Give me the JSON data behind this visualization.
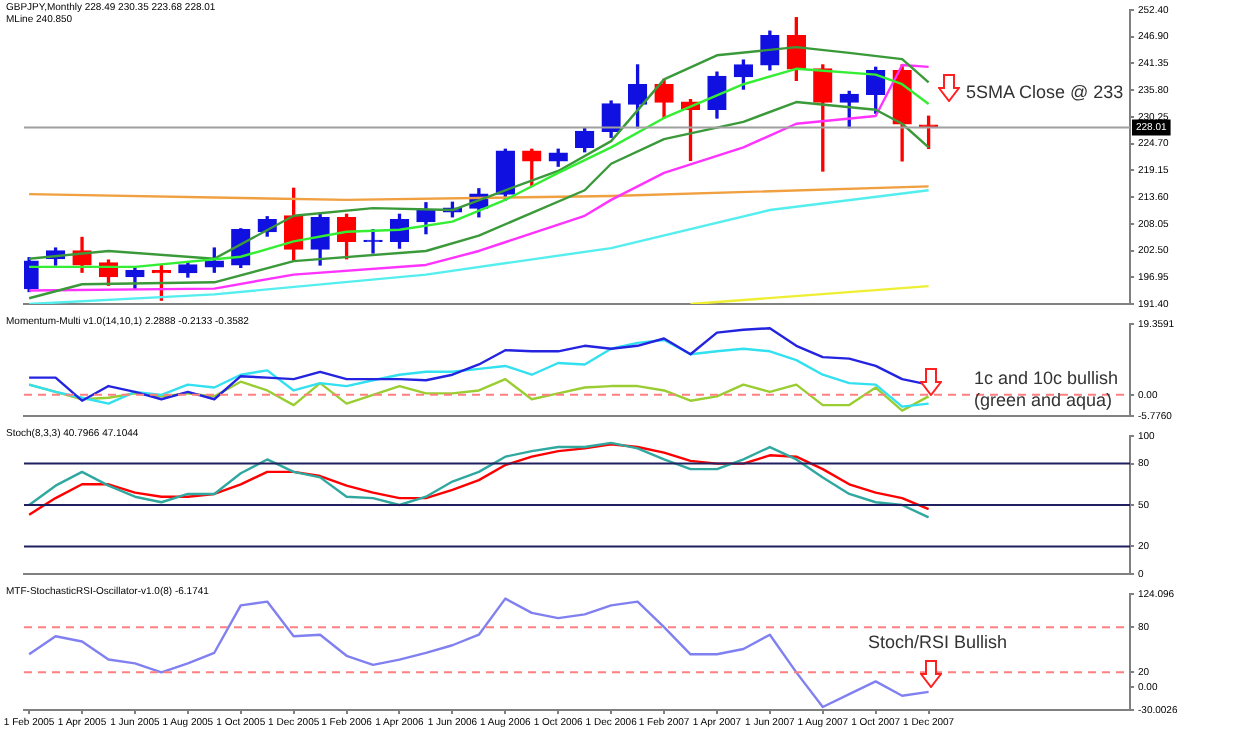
{
  "chart_data": [
    {
      "type": "candlestick",
      "title": "GBPJPY,Monthly  228.49 230.35 223.68 228.01",
      "subtitle": "MLine 240.850",
      "tick_labels": "y",
      "x": [
        "2005-02",
        "2005-03",
        "2005-04",
        "2005-05",
        "2005-06",
        "2005-07",
        "2005-08",
        "2005-09",
        "2005-10",
        "2005-11",
        "2005-12",
        "2006-01",
        "2006-02",
        "2006-03",
        "2006-04",
        "2006-05",
        "2006-06",
        "2006-07",
        "2006-08",
        "2006-09",
        "2006-10",
        "2006-11",
        "2006-12",
        "2007-01",
        "2007-02",
        "2007-03",
        "2007-04",
        "2007-05",
        "2007-06",
        "2007-07",
        "2007-08",
        "2007-09",
        "2007-10",
        "2007-11",
        "2007-12"
      ],
      "ohlc": [
        [
          194.6,
          201,
          194,
          200.3
        ],
        [
          200.8,
          203,
          199.5,
          202.4
        ],
        [
          202.4,
          205.2,
          198,
          199.5
        ],
        [
          199.9,
          200.5,
          195.3,
          197.1
        ],
        [
          197.1,
          199,
          194.5,
          198.3
        ],
        [
          198.3,
          199.5,
          192.2,
          197.9
        ],
        [
          197.9,
          200,
          197,
          199.5
        ],
        [
          199.1,
          203,
          198,
          200.3
        ],
        [
          199.5,
          207,
          199,
          206.8
        ],
        [
          206.4,
          209.5,
          205.5,
          208.9
        ],
        [
          209.7,
          215.4,
          200.5,
          202.8
        ],
        [
          202.8,
          210,
          199.5,
          209.3
        ],
        [
          209.3,
          210,
          200.8,
          204.4
        ],
        [
          204.4,
          206.8,
          202,
          204.6
        ],
        [
          204.4,
          210,
          203,
          208.9
        ],
        [
          208.5,
          212.4,
          206,
          210.9
        ],
        [
          210.5,
          212.5,
          209.5,
          211.3
        ],
        [
          211.3,
          215.3,
          209.5,
          214.2
        ],
        [
          214.2,
          223.5,
          213,
          223.1
        ],
        [
          223.1,
          223.5,
          216,
          221.1
        ],
        [
          221.1,
          223.5,
          220,
          222.7
        ],
        [
          223.9,
          228,
          223,
          227.2
        ],
        [
          227.2,
          233.5,
          226,
          232.9
        ],
        [
          232.9,
          241,
          228,
          236.9
        ],
        [
          236.9,
          238,
          230,
          233.3
        ],
        [
          233.3,
          233.8,
          221.2,
          231.8
        ],
        [
          231.8,
          239.5,
          230,
          238.6
        ],
        [
          238.6,
          242,
          236,
          241
        ],
        [
          241,
          248,
          240,
          247.1
        ],
        [
          247.1,
          250.8,
          237.8,
          240.2
        ],
        [
          240.2,
          241,
          219,
          233.3
        ],
        [
          233.3,
          235.5,
          228,
          234.9
        ],
        [
          234.9,
          240.5,
          231,
          239.8
        ],
        [
          239.8,
          241,
          221.1,
          228.8
        ],
        [
          228.49,
          230.35,
          223.68,
          228.01
        ]
      ],
      "colors": [
        "#1010e0",
        "#1010e0",
        "#ff0000",
        "#ff0000",
        "#1010e0",
        "#ff0000",
        "#1010e0",
        "#1010e0",
        "#1010e0",
        "#1010e0",
        "#ff0000",
        "#1010e0",
        "#ff0000",
        "#1010e0",
        "#1010e0",
        "#1010e0",
        "#1010e0",
        "#1010e0",
        "#1010e0",
        "#ff0000",
        "#1010e0",
        "#1010e0",
        "#1010e0",
        "#1010e0",
        "#ff0000",
        "#ff0000",
        "#1010e0",
        "#1010e0",
        "#1010e0",
        "#ff0000",
        "#ff0000",
        "#1010e0",
        "#1010e0",
        "#ff0000",
        "#ff0000"
      ],
      "series": [
        {
          "type": "line",
          "color": "#33ee33",
          "x": [
            "2005-02",
            "2005-06",
            "2005-10",
            "2005-12",
            "2006-02",
            "2006-04",
            "2006-06",
            "2006-08",
            "2006-10",
            "2006-12",
            "2007-02",
            "2007-05",
            "2007-07",
            "2007-10",
            "2007-11",
            "2007-12"
          ],
          "values": [
            199.1,
            199.1,
            201.2,
            204.4,
            206.4,
            206.8,
            208.5,
            213,
            218.6,
            223.9,
            230,
            237,
            240.2,
            239,
            237,
            232.9
          ]
        },
        {
          "type": "line",
          "color": "#3a9a3a",
          "x": [
            "2005-02",
            "2005-05",
            "2005-09",
            "2005-12",
            "2006-03",
            "2006-06",
            "2006-08",
            "2006-10",
            "2006-12",
            "2007-02",
            "2007-04",
            "2007-07",
            "2007-09",
            "2007-11",
            "2007-12"
          ],
          "values": [
            200.8,
            202.4,
            200.8,
            209.7,
            211.3,
            210.9,
            215,
            219,
            225.2,
            238,
            243,
            244.7,
            243.5,
            242.2,
            237.4
          ]
        },
        {
          "type": "line",
          "color": "#3a9a3a",
          "x": [
            "2005-02",
            "2005-04",
            "2005-09",
            "2005-12",
            "2006-05",
            "2006-07",
            "2006-11",
            "2006-12",
            "2007-02",
            "2007-05",
            "2007-07",
            "2007-10",
            "2007-11",
            "2007-12"
          ],
          "values": [
            192.6,
            195.5,
            195.9,
            200.3,
            202.4,
            205.6,
            215,
            220.5,
            225.6,
            229.2,
            233.3,
            231.7,
            228.8,
            223.9
          ]
        },
        {
          "type": "line",
          "color": "#ff33ff",
          "x": [
            "2005-02",
            "2005-09",
            "2005-12",
            "2006-05",
            "2006-07",
            "2006-11",
            "2006-12",
            "2007-02",
            "2007-05",
            "2007-07",
            "2007-10",
            "2007-11",
            "2007-12"
          ],
          "values": [
            194.2,
            194.6,
            197.5,
            199.5,
            202.4,
            209.7,
            213,
            218.6,
            223.9,
            228.8,
            230.4,
            241,
            240.6
          ]
        },
        {
          "type": "line",
          "color": "#f0a040",
          "x": [
            "2005-02",
            "2006-02",
            "2006-12",
            "2007-12"
          ],
          "values": [
            214.2,
            213,
            213.8,
            215.8
          ]
        },
        {
          "type": "line",
          "color": "#55eeee",
          "x": [
            "2005-02",
            "2005-09",
            "2006-05",
            "2006-12",
            "2007-06",
            "2007-12"
          ],
          "values": [
            191.4,
            193.4,
            197.5,
            203,
            210.9,
            215
          ]
        },
        {
          "type": "line",
          "color": "#eeee33",
          "x": [
            "2007-03",
            "2007-12"
          ],
          "values": [
            191.4,
            195.1
          ]
        }
      ],
      "xlim": [
        "2005-01-26",
        "2008-07-20"
      ],
      "ylim": [
        191.4,
        252.4
      ],
      "yticks": [
        {
          "value": 191.4,
          "label": "191.40"
        },
        196.95,
        {
          "value": 202.5,
          "label": "202.50"
        },
        208.05,
        {
          "value": 213.6,
          "label": "213.60"
        },
        219.15,
        {
          "value": 224.7,
          "label": "224.70"
        },
        230.25,
        {
          "value": 235.8,
          "label": "235.80"
        },
        241.35,
        {
          "value": 246.9,
          "label": "246.90"
        },
        {
          "value": 252.4,
          "label": "252.40"
        }
      ],
      "ref_lines": [
        {
          "axis": "y",
          "value": 228.01,
          "label": "228.01",
          "color": "#a0a0a0"
        }
      ],
      "annotations": [
        "5SMA Close @ 233"
      ]
    },
    {
      "type": "line",
      "title": "Momentum-Multi v1.0(14,10,1) 2.2888 -0.2133 -0.3582",
      "tick_labels": "y",
      "x": [
        "2005-02",
        "2005-03",
        "2005-04",
        "2005-05",
        "2005-06",
        "2005-07",
        "2005-08",
        "2005-09",
        "2005-10",
        "2005-11",
        "2005-12",
        "2006-01",
        "2006-02",
        "2006-03",
        "2006-04",
        "2006-05",
        "2006-06",
        "2006-07",
        "2006-08",
        "2006-09",
        "2006-10",
        "2006-11",
        "2006-12",
        "2007-01",
        "2007-02",
        "2007-03",
        "2007-04",
        "2007-05",
        "2007-06",
        "2007-07",
        "2007-08",
        "2007-09",
        "2007-10",
        "2007-11",
        "2007-12"
      ],
      "series": [
        {
          "color": "#2323e0",
          "values": [
            4.7,
            4.7,
            -1.6,
            2.4,
            0.8,
            -1.2,
            0.8,
            -1.2,
            5.1,
            4.7,
            4.3,
            6.3,
            4.3,
            4.3,
            4.3,
            4,
            5.5,
            8.3,
            12.2,
            11.9,
            11.9,
            13.4,
            12.6,
            13.4,
            15.4,
            11.1,
            17,
            17.8,
            18.2,
            13.4,
            10.3,
            9.9,
            7.9,
            4.3,
            2.8
          ]
        },
        {
          "color": "#33e0f0",
          "values": [
            2.8,
            0.8,
            -0.8,
            -2.4,
            0.8,
            0,
            2.8,
            2,
            5.5,
            6.7,
            1.2,
            3.2,
            2.4,
            4,
            5.5,
            6.3,
            6.3,
            7.1,
            7.9,
            5.5,
            8.7,
            8.3,
            12.6,
            14.2,
            15,
            11.1,
            11.9,
            12.6,
            11.9,
            9.5,
            5.5,
            3.2,
            2.8,
            -3.2,
            -2.4
          ]
        },
        {
          "color": "#9acd32",
          "values": [
            2.8,
            0.8,
            -1.2,
            -0.8,
            0.4,
            -0.4,
            0.4,
            -0.4,
            3.6,
            1.2,
            -2.8,
            3.2,
            -2.4,
            0,
            2.4,
            0.4,
            0.4,
            1.2,
            4.3,
            -1.2,
            0.4,
            2,
            2.4,
            2.4,
            1.2,
            -1.6,
            -0.4,
            2.8,
            0.8,
            2.8,
            -2.8,
            -2.8,
            2,
            -4.3,
            -0.4
          ]
        }
      ],
      "xlim": [
        "2005-01-26",
        "2008-07-20"
      ],
      "ylim": [
        -5.776,
        19.3591
      ],
      "yticks": [
        {
          "value": -5.776,
          "label": "-5.7760"
        },
        {
          "value": 0,
          "label": "0.00"
        },
        19.3591
      ],
      "ref_lines": [
        {
          "axis": "y",
          "value": 0,
          "color": "#ff8080",
          "line_style": "dashed"
        }
      ],
      "annotations": [
        "1c and 10c bullish (green and aqua)"
      ]
    },
    {
      "type": "line",
      "title": "Stoch(8,3,3) 40.7966 47.1044",
      "tick_labels": "y",
      "x": [
        "2005-02",
        "2005-03",
        "2005-04",
        "2005-05",
        "2005-06",
        "2005-07",
        "2005-08",
        "2005-09",
        "2005-10",
        "2005-11",
        "2005-12",
        "2006-01",
        "2006-02",
        "2006-03",
        "2006-04",
        "2006-05",
        "2006-06",
        "2006-07",
        "2006-08",
        "2006-09",
        "2006-10",
        "2006-11",
        "2006-12",
        "2007-01",
        "2007-02",
        "2007-03",
        "2007-04",
        "2007-05",
        "2007-06",
        "2007-07",
        "2007-08",
        "2007-09",
        "2007-10",
        "2007-11",
        "2007-12"
      ],
      "series": [
        {
          "color": "#30a8a0",
          "values": [
            50,
            64,
            74,
            64,
            56,
            52,
            58,
            58,
            73,
            83,
            74,
            70,
            56,
            55,
            50,
            56,
            67,
            74,
            85,
            89,
            92,
            92,
            95,
            91,
            83,
            76,
            76,
            83,
            92,
            83,
            70,
            58,
            52,
            50,
            41
          ]
        },
        {
          "color": "#ff0000",
          "values": [
            43,
            55,
            65,
            65,
            59,
            56,
            56,
            58,
            65,
            74,
            74,
            71,
            64,
            59,
            55,
            55,
            61,
            68,
            79,
            85,
            89,
            91,
            94,
            92,
            88,
            82,
            80,
            80,
            86,
            85,
            76,
            65,
            59,
            55,
            47
          ]
        }
      ],
      "xlim": [
        "2005-01-26",
        "2008-07-20"
      ],
      "ylim": [
        0,
        100
      ],
      "yticks": [
        0,
        20,
        50,
        80,
        100
      ],
      "ref_lines": [
        {
          "axis": "y",
          "value": 80,
          "color": "#202060"
        },
        {
          "axis": "y",
          "value": 50,
          "color": "#202060"
        },
        {
          "axis": "y",
          "value": 20,
          "color": "#202060"
        }
      ]
    },
    {
      "type": "line",
      "title": "MTF-StochasticRSI-Oscillator-v1.0(8) -6.1741",
      "x": [
        "2005-02",
        "2005-03",
        "2005-04",
        "2005-05",
        "2005-06",
        "2005-07",
        "2005-08",
        "2005-09",
        "2005-10",
        "2005-11",
        "2005-12",
        "2006-01",
        "2006-02",
        "2006-03",
        "2006-04",
        "2006-05",
        "2006-06",
        "2006-07",
        "2006-08",
        "2006-09",
        "2006-10",
        "2006-11",
        "2006-12",
        "2007-01",
        "2007-02",
        "2007-03",
        "2007-04",
        "2007-05",
        "2007-06",
        "2007-07",
        "2007-08",
        "2007-09",
        "2007-10",
        "2007-11",
        "2007-12"
      ],
      "series": [
        {
          "color": "#8080f0",
          "values": [
            44,
            68,
            61,
            37,
            32,
            20,
            32,
            46,
            109,
            114,
            68,
            70,
            42,
            30,
            37,
            46,
            56,
            70,
            118,
            99,
            92,
            97,
            109,
            114,
            80,
            44,
            44,
            51,
            70,
            20,
            -26,
            -9,
            8,
            -11,
            -6
          ]
        }
      ],
      "xlim": [
        "2005-01-26",
        "2008-07-20"
      ],
      "ylim": [
        -30.0026,
        124.096
      ],
      "yticks": [
        {
          "value": -30.0026,
          "label": "-30.0026"
        },
        {
          "value": 0,
          "label": "0.00"
        },
        20,
        80,
        124.096
      ],
      "xticks": [
        {
          "value": "2005-02-01",
          "label": "1 Feb 2005"
        },
        {
          "value": "2005-04-01",
          "label": "1 Apr 2005"
        },
        {
          "value": "2005-06-01",
          "label": "1 Jun 2005"
        },
        {
          "value": "2005-08-01",
          "label": "1 Aug 2005"
        },
        {
          "value": "2005-10-01",
          "label": "1 Oct 2005"
        },
        {
          "value": "2005-12-01",
          "label": "1 Dec 2005"
        },
        {
          "value": "2006-02-01",
          "label": "1 Feb 2006"
        },
        {
          "value": "2006-04-01",
          "label": "1 Apr 2006"
        },
        {
          "value": "2006-06-01",
          "label": "1 Jun 2006"
        },
        {
          "value": "2006-08-01",
          "label": "1 Aug 2006"
        },
        {
          "value": "2006-10-01",
          "label": "1 Oct 2006"
        },
        {
          "value": "2006-12-01",
          "label": "1 Dec 2006"
        },
        {
          "value": "2007-02-01",
          "label": "1 Feb 2007"
        },
        {
          "value": "2007-04-01",
          "label": "1 Apr 2007"
        },
        {
          "value": "2007-06-01",
          "label": "1 Jun 2007"
        },
        {
          "value": "2007-08-01",
          "label": "1 Aug 2007"
        },
        {
          "value": "2007-10-01",
          "label": "1 Oct 2007"
        },
        {
          "value": "2007-12-01",
          "label": "1 Dec 2007"
        }
      ],
      "ref_lines": [
        {
          "axis": "y",
          "value": 80,
          "color": "#ff8080",
          "line_style": "dashed"
        },
        {
          "axis": "y",
          "value": 20,
          "color": "#ff8080",
          "line_style": "dashed"
        }
      ],
      "annotations": [
        "Stoch/RSI Bullish"
      ]
    }
  ]
}
